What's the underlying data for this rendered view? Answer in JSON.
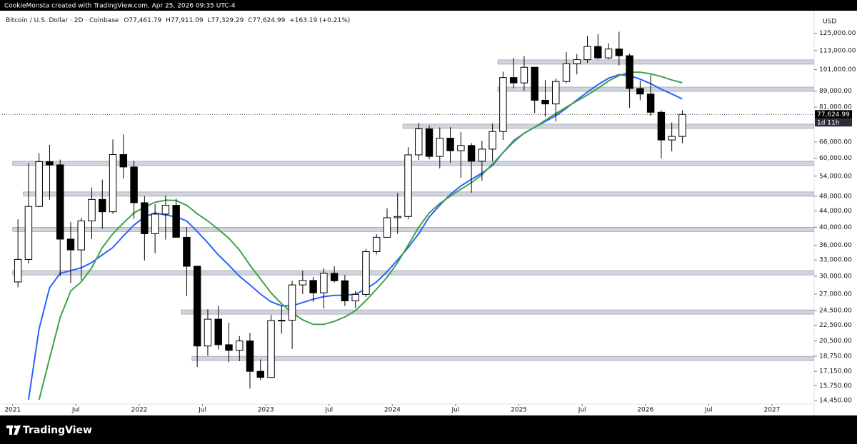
{
  "header": {
    "credit": "CookieMonsta created with TradingView.com, Apr 25, 2026 09:35 UTC-4"
  },
  "footer": {
    "brand": "TradingView"
  },
  "chart_data": {
    "type": "candlestick",
    "symbol": "Bitcoin / U.S. Dollar · 2D · Coinbase",
    "ohlc_labels": [
      "O77,461.79",
      "H77,911.09",
      "L77,329.29",
      "C77,624.99"
    ],
    "change": "+163.19 (+0.21%)",
    "currency": "USD",
    "last_price_label": "77,624.99",
    "countdown": "1d 11h",
    "log": true,
    "colors": {
      "up": "#ffffff",
      "down": "#000000",
      "border": "#000000"
    },
    "xlim": [
      "2020-12",
      "2027-05"
    ],
    "ylim": [
      14150,
      141000
    ],
    "x": [
      "2021-01",
      "2021-02",
      "2021-03",
      "2021-04",
      "2021-05",
      "2021-06",
      "2021-07",
      "2021-08",
      "2021-09",
      "2021-10",
      "2021-11",
      "2021-12",
      "2022-01",
      "2022-02",
      "2022-03",
      "2022-04",
      "2022-05",
      "2022-06",
      "2022-07",
      "2022-08",
      "2022-09",
      "2022-10",
      "2022-11",
      "2022-12",
      "2023-01",
      "2023-02",
      "2023-03",
      "2023-04",
      "2023-05",
      "2023-06",
      "2023-07",
      "2023-08",
      "2023-09",
      "2023-10",
      "2023-11",
      "2023-12",
      "2024-01",
      "2024-02",
      "2024-03",
      "2024-04",
      "2024-05",
      "2024-06",
      "2024-07",
      "2024-08",
      "2024-09",
      "2024-10",
      "2024-11",
      "2024-12",
      "2025-01",
      "2025-02",
      "2025-03",
      "2025-04",
      "2025-05",
      "2025-06",
      "2025-07",
      "2025-08",
      "2025-09",
      "2025-10",
      "2025-11",
      "2025-12",
      "2026-01",
      "2026-02",
      "2026-03",
      "2026-04"
    ],
    "open": [
      29000,
      33100,
      45200,
      58800,
      57700,
      37300,
      35000,
      41500,
      47100,
      43800,
      61300,
      57000,
      46200,
      38500,
      43200,
      45500,
      37700,
      31800,
      19900,
      23300,
      20050,
      19400,
      20500,
      17150,
      16550,
      23100,
      23150,
      28500,
      29250,
      27200,
      30500,
      29200,
      25950,
      26950,
      34650,
      37700,
      42300,
      42600,
      61200,
      71300,
      60650,
      67500,
      62700,
      64650,
      58950,
      63300,
      70200,
      96400,
      93400,
      102400,
      84350,
      82550,
      94200,
      104600,
      107100,
      115700,
      108200,
      114000,
      109600,
      90400,
      87500,
      78600,
      66800,
      68200
    ],
    "high": [
      41900,
      58300,
      61800,
      64900,
      59500,
      41300,
      42300,
      50500,
      52900,
      67000,
      69000,
      59100,
      48000,
      45800,
      48200,
      47400,
      40000,
      31900,
      24700,
      25200,
      22800,
      21100,
      21500,
      18400,
      23900,
      25300,
      29200,
      31000,
      29850,
      31400,
      31800,
      30200,
      27500,
      35200,
      38400,
      44700,
      48900,
      64000,
      73800,
      72800,
      71900,
      72000,
      70000,
      65600,
      66500,
      73600,
      99800,
      108300,
      109400,
      102500,
      95000,
      95800,
      111900,
      110600,
      123200,
      124500,
      117900,
      126200,
      111000,
      94600,
      97900,
      79500,
      74000,
      79500
    ],
    "low": [
      28100,
      32300,
      45000,
      47000,
      30000,
      28800,
      29300,
      37300,
      39600,
      43300,
      53300,
      42000,
      32900,
      34300,
      37200,
      37600,
      26700,
      17600,
      18800,
      19500,
      18100,
      18200,
      15500,
      16300,
      16500,
      21400,
      19550,
      27000,
      25800,
      24800,
      28900,
      25200,
      24900,
      26550,
      34100,
      37600,
      38500,
      41900,
      59300,
      59600,
      56500,
      58400,
      53500,
      49000,
      52600,
      58900,
      66800,
      90500,
      89200,
      78200,
      76600,
      74400,
      93300,
      98200,
      105100,
      107300,
      107200,
      103500,
      80600,
      84400,
      77000,
      60000,
      62500,
      65500
    ],
    "close": [
      33100,
      45200,
      58800,
      57700,
      37300,
      35000,
      41500,
      47100,
      43800,
      61300,
      57000,
      46200,
      38500,
      43200,
      45500,
      37700,
      31800,
      19900,
      23300,
      20050,
      19400,
      20500,
      17150,
      16550,
      23100,
      23150,
      28500,
      29250,
      27200,
      30500,
      29200,
      25950,
      26950,
      34650,
      37700,
      42300,
      42600,
      61200,
      71300,
      60650,
      67500,
      62700,
      64650,
      58950,
      63300,
      70200,
      96400,
      93400,
      102400,
      84350,
      82550,
      94200,
      104600,
      107100,
      115700,
      108200,
      114000,
      109600,
      90400,
      87500,
      78600,
      66800,
      68200,
      77624.99
    ],
    "overlays": [
      {
        "color": "#2962ff",
        "values": [
          null,
          14500,
          22000,
          28000,
          30500,
          31000,
          31500,
          32500,
          34000,
          35500,
          38000,
          40500,
          42500,
          43500,
          43000,
          42500,
          41500,
          39000,
          36500,
          34000,
          32000,
          30000,
          28500,
          27000,
          25800,
          25200,
          25200,
          25700,
          26200,
          26600,
          26800,
          26800,
          27000,
          27800,
          29000,
          30800,
          33000,
          35500,
          38500,
          42500,
          45500,
          48500,
          51000,
          53000,
          55000,
          57500,
          62000,
          66500,
          69500,
          72000,
          74500,
          77000,
          80500,
          84500,
          88500,
          92500,
          96000,
          98000,
          97500,
          95500,
          93000,
          90000,
          87500,
          85000
        ]
      },
      {
        "color": "#43a047",
        "values": [
          null,
          null,
          14500,
          18500,
          23500,
          27500,
          29000,
          31500,
          35500,
          38500,
          41000,
          43500,
          45000,
          46300,
          46900,
          46800,
          45500,
          43300,
          41500,
          39500,
          37500,
          35000,
          32000,
          29500,
          27200,
          25500,
          24200,
          23200,
          22600,
          22600,
          23000,
          23600,
          24500,
          26000,
          27800,
          29800,
          32500,
          36000,
          40000,
          43500,
          46000,
          48000,
          50000,
          52000,
          54500,
          58000,
          62000,
          66000,
          69500,
          72000,
          75000,
          78000,
          81000,
          84000,
          87000,
          90500,
          94500,
          97500,
          99500,
          99500,
          98500,
          97000,
          95000,
          93500
        ]
      }
    ],
    "zones": [
      {
        "value": 105600,
        "start": "2024-11"
      },
      {
        "value": 90000,
        "start": "2024-11"
      },
      {
        "value": 72400,
        "start": "2024-02"
      },
      {
        "value": 58200,
        "start": "2021-01"
      },
      {
        "value": 48600,
        "start": "2021-02"
      },
      {
        "value": 39500,
        "start": "2021-01"
      },
      {
        "value": 30600,
        "start": "2021-01"
      },
      {
        "value": 24300,
        "start": "2022-05"
      },
      {
        "value": 18500,
        "start": "2022-06"
      }
    ],
    "zone_color": "#d1d4dc",
    "yticks": [
      {
        "value": 125000,
        "label": "125,000.00"
      },
      {
        "value": 113000,
        "label": "113,000.00"
      },
      {
        "value": 101000,
        "label": "101,000.00"
      },
      {
        "value": 89000,
        "label": "89,000.00"
      },
      {
        "value": 81000,
        "label": "81,000.00"
      },
      {
        "value": 66000,
        "label": "66,000.00"
      },
      {
        "value": 60000,
        "label": "60,000.00"
      },
      {
        "value": 54000,
        "label": "54,000.00"
      },
      {
        "value": 48000,
        "label": "48,000.00"
      },
      {
        "value": 44000,
        "label": "44,000.00"
      },
      {
        "value": 40000,
        "label": "40,000.00"
      },
      {
        "value": 36000,
        "label": "36,000.00"
      },
      {
        "value": 33000,
        "label": "33,000.00"
      },
      {
        "value": 30000,
        "label": "30,000.00"
      },
      {
        "value": 27000,
        "label": "27,000.00"
      },
      {
        "value": 24500,
        "label": "24,500.00"
      },
      {
        "value": 22500,
        "label": "22,500.00"
      },
      {
        "value": 20500,
        "label": "20,500.00"
      },
      {
        "value": 18750,
        "label": "18,750.00"
      },
      {
        "value": 17150,
        "label": "17,150.00"
      },
      {
        "value": 15750,
        "label": "15,750.00"
      },
      {
        "value": 14450,
        "label": "14,450.00"
      }
    ],
    "xticks": [
      {
        "value": "2021-01",
        "label": "2021"
      },
      {
        "value": "2021-07",
        "label": "Jul"
      },
      {
        "value": "2022-01",
        "label": "2022"
      },
      {
        "value": "2022-07",
        "label": "Jul"
      },
      {
        "value": "2023-01",
        "label": "2023"
      },
      {
        "value": "2023-07",
        "label": "Jul"
      },
      {
        "value": "2024-01",
        "label": "2024"
      },
      {
        "value": "2024-07",
        "label": "Jul"
      },
      {
        "value": "2025-01",
        "label": "2025"
      },
      {
        "value": "2025-07",
        "label": "Jul"
      },
      {
        "value": "2026-01",
        "label": "2026"
      },
      {
        "value": "2026-07",
        "label": "Jul"
      },
      {
        "value": "2027-01",
        "label": "2027"
      }
    ]
  }
}
